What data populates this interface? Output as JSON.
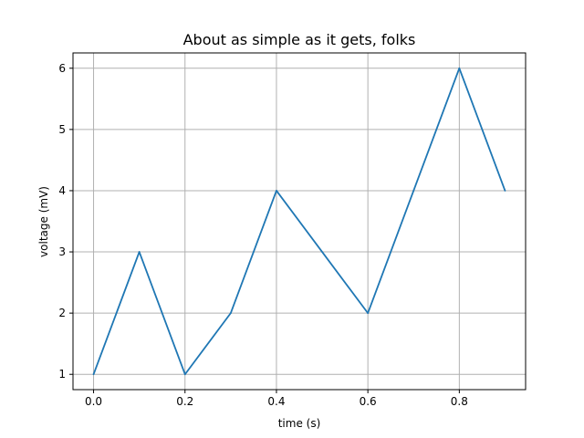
{
  "chart_data": {
    "type": "line",
    "title": "About as simple as it gets, folks",
    "xlabel": "time (s)",
    "ylabel": "voltage (mV)",
    "x": [
      0.0,
      0.1,
      0.2,
      0.3,
      0.4,
      0.5,
      0.6,
      0.7,
      0.8,
      0.9
    ],
    "series": [
      {
        "values": [
          1,
          3,
          1,
          2,
          4,
          3,
          2,
          4,
          6,
          4
        ],
        "color": "#1f77b4"
      }
    ],
    "xlim": [
      -0.045,
      0.945
    ],
    "ylim": [
      0.75,
      6.25
    ],
    "xticks": [
      0.0,
      0.2,
      0.4,
      0.6,
      0.8
    ],
    "xtick_labels": [
      "0.0",
      "0.2",
      "0.4",
      "0.6",
      "0.8"
    ],
    "yticks": [
      1,
      2,
      3,
      4,
      5,
      6
    ],
    "ytick_labels": [
      "1",
      "2",
      "3",
      "4",
      "5",
      "6"
    ],
    "grid": true,
    "legend": "none"
  }
}
